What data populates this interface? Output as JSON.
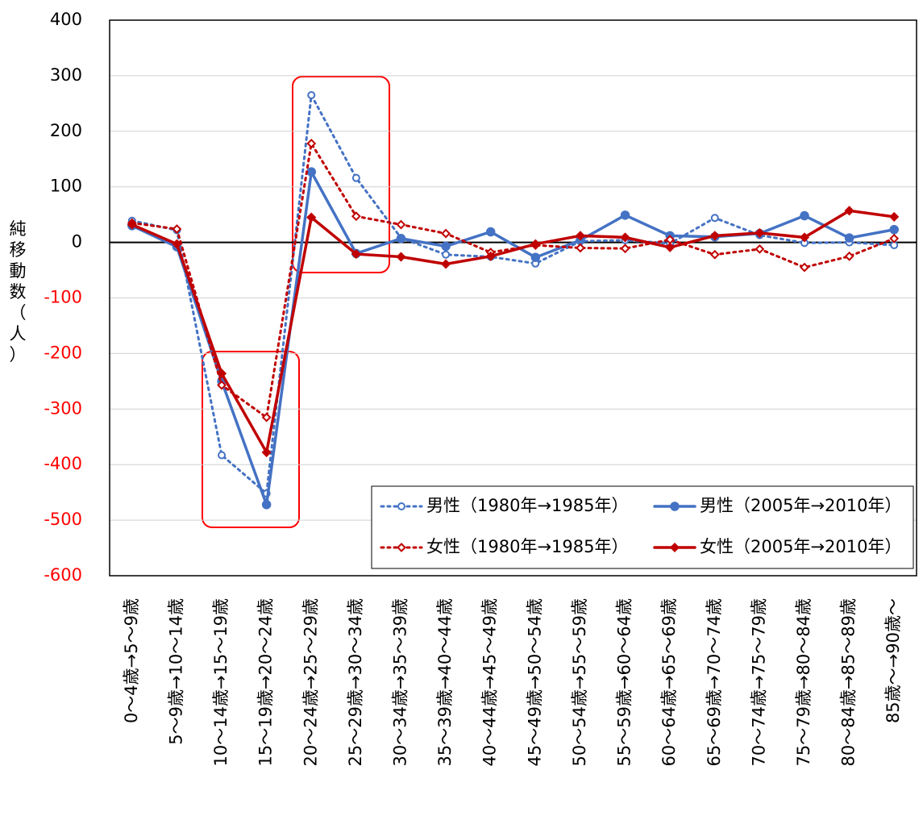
{
  "chart_data": {
    "type": "line",
    "y_label": "純移動数（人）",
    "categories": [
      "0～4歳→5～9歳",
      "5～9歳→10～14歳",
      "10～14歳→15～19歳",
      "15～19歳→20～24歳",
      "20～24歳→25～29歳",
      "25～29歳→30～34歳",
      "30～34歳→35～39歳",
      "35～39歳→40～44歳",
      "40～44歳→45～49歳",
      "45～49歳→50～54歳",
      "50～54歳→55～59歳",
      "55～59歳→60～64歳",
      "60～64歳→65～69歳",
      "65～69歳→70～74歳",
      "70～74歳→75～79歳",
      "75～79歳→80～84歳",
      "80～84歳→85～89歳",
      "85歳～→90歳～"
    ],
    "series": [
      {
        "name": "男性（1980年→1985年）",
        "color": "#4472c4",
        "dash": true,
        "marker": "circle",
        "values": [
          39,
          22,
          -383,
          -452,
          265,
          116,
          8,
          -22,
          -26,
          -38,
          2,
          4,
          -2,
          44,
          13,
          -1,
          0,
          -5
        ]
      },
      {
        "name": "男性（2005年→2010年）",
        "color": "#4472c4",
        "dash": false,
        "marker": "circle",
        "values": [
          30,
          -8,
          -250,
          -472,
          127,
          -20,
          7,
          -7,
          19,
          -27,
          4,
          49,
          12,
          10,
          16,
          48,
          8,
          23
        ]
      },
      {
        "name": "女性（1980年→1985年）",
        "color": "#c00000",
        "dash": true,
        "marker": "diamond",
        "values": [
          35,
          24,
          -257,
          -315,
          178,
          47,
          32,
          16,
          -18,
          -5,
          -10,
          -11,
          5,
          -22,
          -12,
          -45,
          -25,
          7
        ]
      },
      {
        "name": "女性（2005年→2010年）",
        "color": "#c00000",
        "dash": false,
        "marker": "diamond",
        "values": [
          32,
          -3,
          -236,
          -378,
          45,
          -21,
          -26,
          -39,
          -25,
          -3,
          12,
          9,
          -9,
          12,
          17,
          9,
          57,
          46
        ]
      }
    ],
    "ylim": [
      -600,
      400
    ],
    "yticks": [
      -600,
      -500,
      -400,
      -300,
      -200,
      -100,
      0,
      100,
      200,
      300,
      400
    ],
    "grid": true,
    "negative_tick_color": "#ff0000",
    "legend": "lower right"
  }
}
